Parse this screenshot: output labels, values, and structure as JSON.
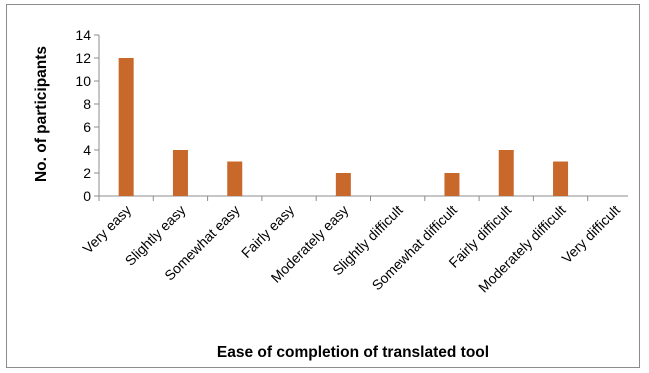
{
  "chart_data": {
    "type": "bar",
    "title": "",
    "xlabel": "Ease of completion of translated tool",
    "ylabel": "No. of participants",
    "categories": [
      "Very easy",
      "Slightly easy",
      "Somewhat easy",
      "Fairly easy",
      "Moderately easy",
      "Slightly difficult",
      "Somewhat difficult",
      "Fairly difficult",
      "Moderately difficult",
      "Very difficult"
    ],
    "values": [
      12,
      4,
      3,
      0,
      2,
      0,
      2,
      4,
      3,
      0
    ],
    "ylim": [
      0,
      14
    ],
    "yticks": [
      0,
      2,
      4,
      6,
      8,
      10,
      12,
      14
    ],
    "grid": false,
    "legend": "none",
    "bar_color": "#c8682a",
    "axis_color": "#8c8c8c"
  }
}
